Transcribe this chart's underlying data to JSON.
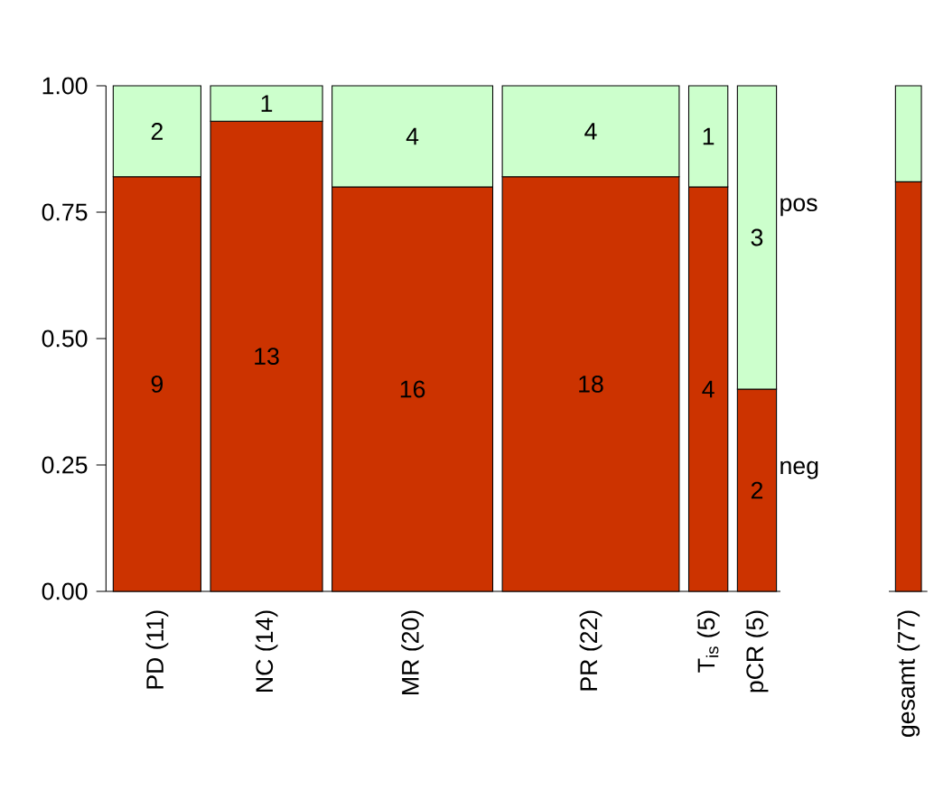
{
  "chart_data": [
    {
      "type": "bar",
      "stacked": true,
      "categories": [
        "PD (11)",
        "NC (14)",
        "MR (20)",
        "PR (22)",
        "T$_{is}$ (5)",
        "pCR (5)"
      ],
      "series": [
        {
          "name": "neg",
          "color": "#cc3300",
          "values": [
            0.82,
            0.93,
            0.8,
            0.82,
            0.8,
            0.4
          ]
        },
        {
          "name": "pos",
          "color": "#ccffcc",
          "values": [
            0.18,
            0.07,
            0.2,
            0.18,
            0.2,
            0.6
          ]
        }
      ],
      "ylim": [
        0,
        1
      ],
      "yticks": [
        {
          "value": 0,
          "label": "0.00"
        },
        {
          "value": 0.25,
          "label": "0.25"
        },
        {
          "value": 0.5,
          "label": "0.50"
        },
        {
          "value": 0.75,
          "label": "0.75"
        },
        {
          "value": 1,
          "label": "1.00"
        }
      ],
      "annotations": [
        "9",
        "2",
        "13",
        "1",
        "16",
        "4",
        "18",
        "4",
        "4",
        "1",
        "2",
        "3"
      ],
      "grid": false
    },
    {
      "type": "bar",
      "stacked": true,
      "categories": [
        "gesamt (77)"
      ],
      "series": [
        {
          "color": "#cc3300",
          "values": [
            0.81
          ]
        },
        {
          "color": "#ccffcc",
          "values": [
            0.19
          ]
        }
      ],
      "ylim": [
        0,
        1
      ],
      "tick_labels": "x"
    }
  ]
}
